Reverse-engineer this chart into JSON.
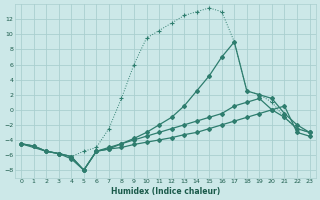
{
  "xlabel": "Humidex (Indice chaleur)",
  "background_color": "#cce8e8",
  "grid_color": "#aacfcf",
  "line_color": "#2e7d6e",
  "xlim": [
    -0.5,
    23.5
  ],
  "ylim": [
    -9,
    14
  ],
  "xticks": [
    0,
    1,
    2,
    3,
    4,
    5,
    6,
    7,
    8,
    9,
    10,
    11,
    12,
    13,
    14,
    15,
    16,
    17,
    18,
    19,
    20,
    21,
    22,
    23
  ],
  "yticks": [
    -8,
    -6,
    -4,
    -2,
    0,
    2,
    4,
    6,
    8,
    10,
    12
  ],
  "line1_dotted": {
    "x": [
      0,
      1,
      2,
      3,
      4,
      5,
      6,
      7,
      8,
      9,
      10,
      11,
      12,
      13,
      14,
      15,
      16,
      17,
      18,
      19,
      20,
      21,
      22,
      23
    ],
    "y": [
      -4.5,
      -4.8,
      -5.5,
      -5.8,
      -6.2,
      -5.5,
      -5.0,
      -2.5,
      1.5,
      6.0,
      9.5,
      10.5,
      11.5,
      12.5,
      13.0,
      13.5,
      13.0,
      9.0,
      2.5,
      2.0,
      1.0,
      -1.0,
      -2.5,
      -3.0
    ]
  },
  "line2_solid_steep": {
    "x": [
      0,
      2,
      3,
      4,
      5,
      6,
      7,
      8,
      9,
      10,
      11,
      12,
      13,
      14,
      15,
      16,
      17,
      18,
      19,
      20,
      21,
      22,
      23
    ],
    "y": [
      -4.5,
      -5.5,
      -5.8,
      -6.5,
      -8.0,
      -5.5,
      -5.2,
      -4.5,
      -3.8,
      -3.0,
      -2.0,
      -1.0,
      0.5,
      2.5,
      4.5,
      7.0,
      9.0,
      2.5,
      2.0,
      1.5,
      -0.5,
      -2.0,
      -3.0
    ]
  },
  "line3_solid_flat1": {
    "x": [
      0,
      1,
      2,
      3,
      4,
      5,
      6,
      7,
      8,
      9,
      10,
      11,
      12,
      13,
      14,
      15,
      16,
      17,
      18,
      19,
      20,
      21,
      22,
      23
    ],
    "y": [
      -4.5,
      -4.8,
      -5.5,
      -5.8,
      -6.2,
      -8.0,
      -5.5,
      -5.0,
      -4.5,
      -4.0,
      -3.5,
      -3.0,
      -2.5,
      -2.0,
      -1.5,
      -1.0,
      -0.5,
      0.5,
      1.0,
      1.5,
      0.0,
      -1.0,
      -2.5,
      -3.0
    ]
  },
  "line4_solid_flat2": {
    "x": [
      0,
      1,
      2,
      3,
      4,
      5,
      6,
      7,
      8,
      9,
      10,
      11,
      12,
      13,
      14,
      15,
      16,
      17,
      18,
      19,
      20,
      21,
      22,
      23
    ],
    "y": [
      -4.5,
      -4.8,
      -5.5,
      -5.8,
      -6.2,
      -8.0,
      -5.5,
      -5.2,
      -5.0,
      -4.6,
      -4.3,
      -4.0,
      -3.7,
      -3.3,
      -3.0,
      -2.5,
      -2.0,
      -1.5,
      -1.0,
      -0.5,
      0.0,
      0.5,
      -3.0,
      -3.5
    ]
  }
}
